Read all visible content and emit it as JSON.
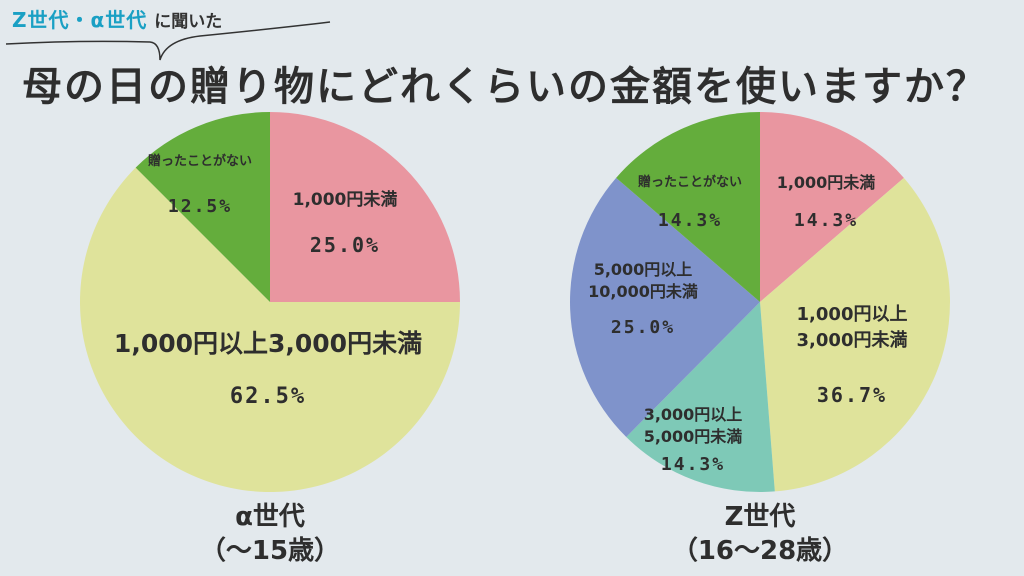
{
  "header": {
    "tag_generations": "Z世代・α世代",
    "tag_asked": "に聞いた",
    "title": "母の日の贈り物にどれくらいの金額を使いますか？"
  },
  "colors": {
    "under_1000": "#e996a0",
    "1000_to_3000": "#dfe39b",
    "3000_to_5000": "#7ec9b7",
    "5000_to_10000": "#7f93cb",
    "never_gave": "#64ad3c",
    "accent_text": "#1aa0c4"
  },
  "chart_data": [
    {
      "type": "pie",
      "name": "α世代",
      "caption": [
        "α世代",
        "（〜15歳）"
      ],
      "slices": [
        {
          "label": [
            "1,000円未満"
          ],
          "value": 25.0,
          "value_label": "25.0%",
          "color_key": "under_1000"
        },
        {
          "label": [
            "1,000円以上3,000円未満"
          ],
          "value": 62.5,
          "value_label": "62.5%",
          "color_key": "1000_to_3000"
        },
        {
          "label": [
            "贈ったことがない"
          ],
          "value": 12.5,
          "value_label": "12.5%",
          "color_key": "never_gave"
        }
      ]
    },
    {
      "type": "pie",
      "name": "Z世代",
      "caption": [
        "Z世代",
        "（16〜28歳）"
      ],
      "slices": [
        {
          "label": [
            "1,000円未満"
          ],
          "value": 14.3,
          "value_label": "14.3%",
          "color_key": "under_1000"
        },
        {
          "label": [
            "1,000円以上",
            "3,000円未満"
          ],
          "value": 36.7,
          "value_label": "36.7%",
          "color_key": "1000_to_3000"
        },
        {
          "label": [
            "3,000円以上",
            "5,000円未満"
          ],
          "value": 14.3,
          "value_label": "14.3%",
          "color_key": "3000_to_5000"
        },
        {
          "label": [
            "5,000円以上",
            "10,000円未満"
          ],
          "value": 25.0,
          "value_label": "25.0%",
          "color_key": "5000_to_10000"
        },
        {
          "label": [
            "贈ったことがない"
          ],
          "value": 14.3,
          "value_label": "14.3%",
          "color_key": "never_gave"
        }
      ]
    }
  ]
}
